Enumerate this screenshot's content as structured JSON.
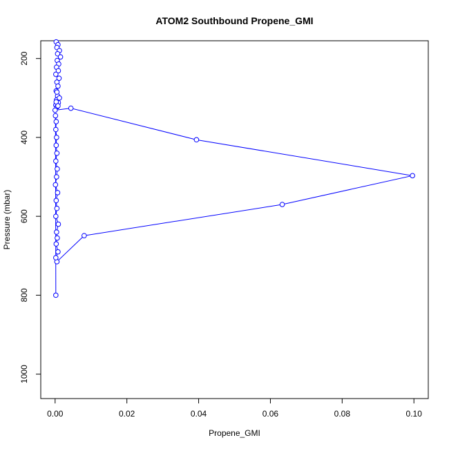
{
  "chart_data": {
    "type": "line",
    "title": "ATOM2 Southbound Propene_GMI",
    "xlabel": "Propene_GMI",
    "ylabel": "Pressure (mbar)",
    "xlim": [
      -0.004,
      0.104
    ],
    "ylim": [
      1062,
      155
    ],
    "y_reversed": true,
    "grid": false,
    "x_ticks": [
      0.0,
      0.02,
      0.04,
      0.06,
      0.08,
      0.1
    ],
    "x_tick_labels": [
      "0.00",
      "0.02",
      "0.04",
      "0.06",
      "0.08",
      "0.10"
    ],
    "y_ticks": [
      200,
      400,
      600,
      800,
      1000
    ],
    "y_tick_labels": [
      "200",
      "400",
      "600",
      "800",
      "1000"
    ],
    "series": [
      {
        "color": "#0000ff",
        "marker": "open-circle",
        "x": [
          0.0003,
          0.0008,
          0.0005,
          0.0012,
          0.0007,
          0.0015,
          0.0006,
          0.001,
          0.0004,
          0.0009,
          0.0002,
          0.0011,
          0.0005,
          0.0008,
          0.0003,
          0.0007,
          0.0004,
          0.0009,
          0.0002,
          0.0006,
          0.0012,
          0.0005,
          0.0003,
          0.0008,
          0.0,
          0.0044,
          0.0394,
          0.0996,
          0.0633,
          0.0081,
          0.0005,
          0.0002,
          0.0008,
          0.0003,
          0.0006,
          0.0004,
          0.0009,
          0.0002,
          0.0005,
          0.0003,
          0.0007,
          0.0001,
          0.0004,
          0.0006,
          0.0002,
          0.0005,
          0.0003,
          0.0004,
          0.0002,
          0.0003,
          0.0001,
          0.0002
        ],
        "y": [
          158,
          165,
          172,
          180,
          188,
          196,
          205,
          214,
          222,
          231,
          240,
          250,
          260,
          270,
          282,
          295,
          305,
          312,
          318,
          322,
          300,
          285,
          310,
          320,
          331,
          326,
          406,
          497,
          570,
          649,
          715,
          705,
          690,
          670,
          655,
          640,
          620,
          600,
          580,
          560,
          540,
          520,
          500,
          480,
          460,
          440,
          420,
          400,
          380,
          360,
          345,
          800
        ]
      }
    ]
  }
}
